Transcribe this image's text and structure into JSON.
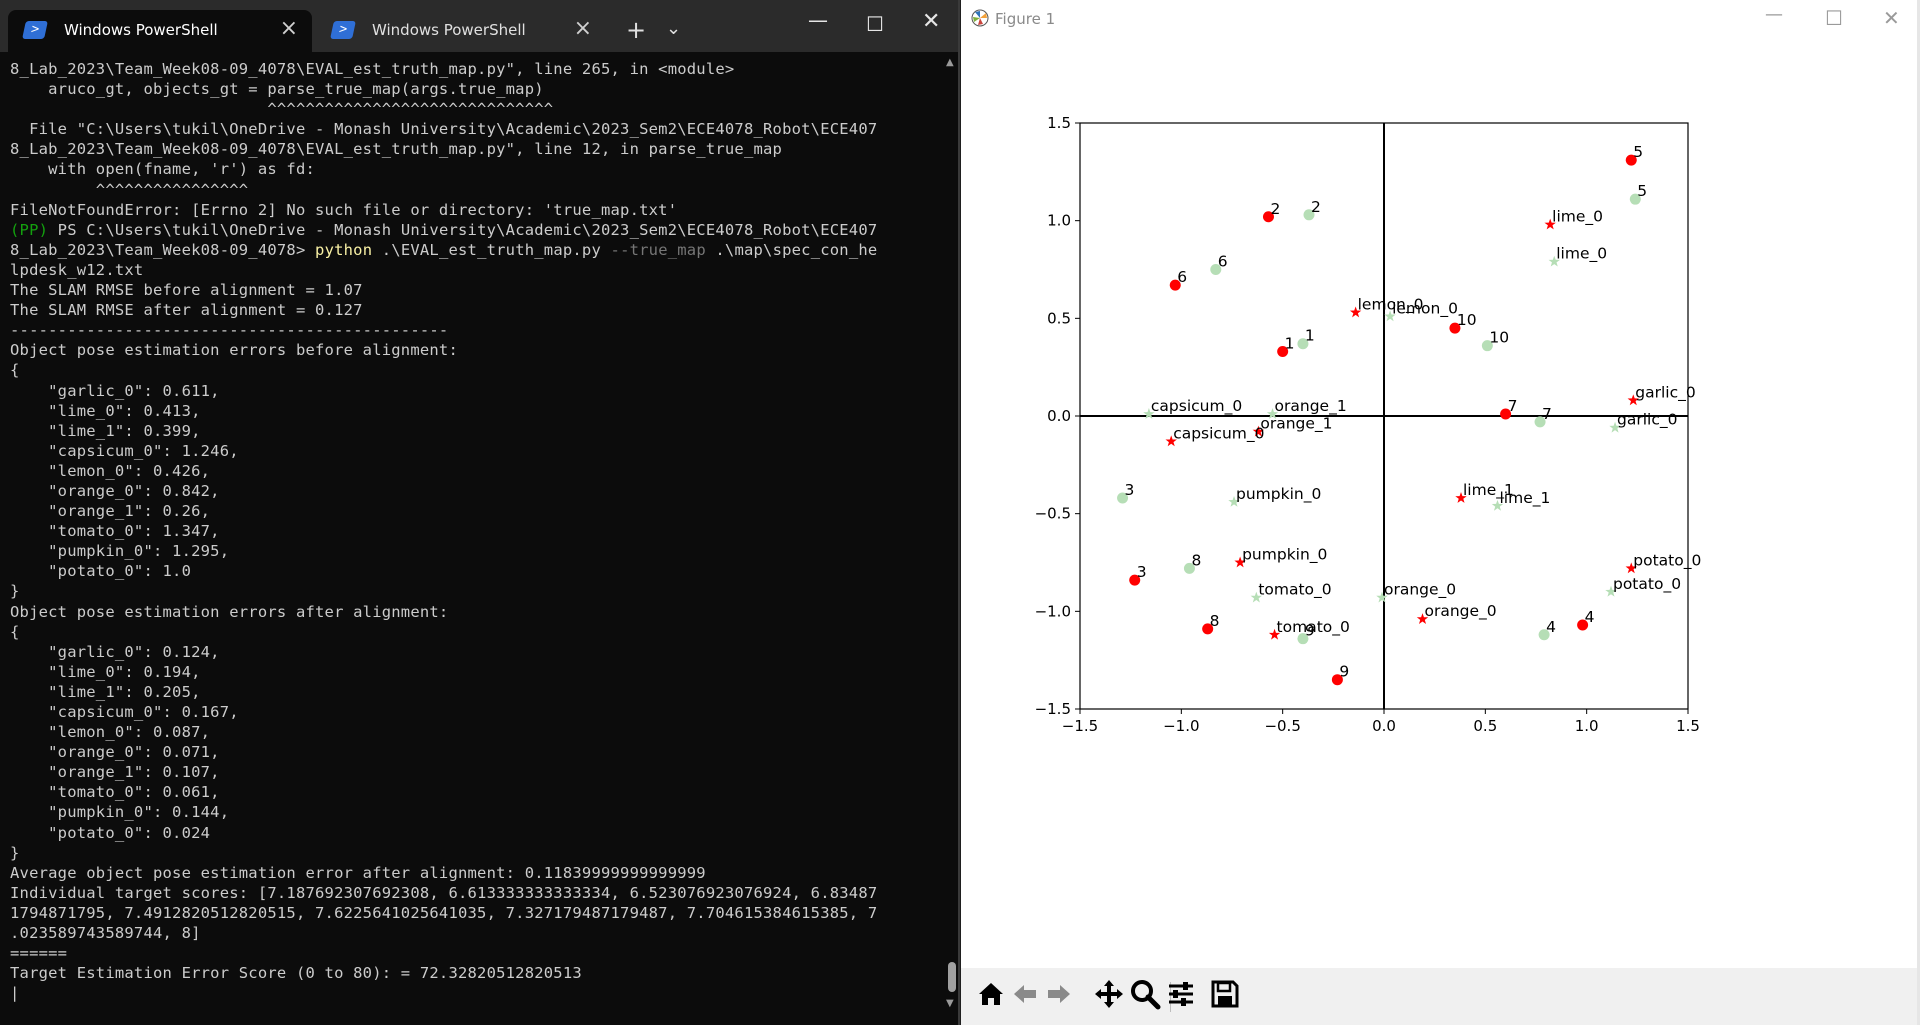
{
  "terminal": {
    "tabs": [
      {
        "label": "Windows PowerShell",
        "icon": "powershell-icon",
        "active": true
      },
      {
        "label": "Windows PowerShell",
        "icon": "powershell-icon",
        "active": false
      }
    ],
    "new_tab_glyph": "+",
    "dropdown_glyph": "⌄",
    "lines": [
      "8_Lab_2023\\Team_Week08-09_4078\\EVAL_est_truth_map.py\", line 265, in <module>",
      "    aruco_gt, objects_gt = parse_true_map(args.true_map)",
      "                           ^^^^^^^^^^^^^^^^^^^^^^^^^^^^^^",
      "  File \"C:\\Users\\tukil\\OneDrive - Monash University\\Academic\\2023_Sem2\\ECE4078_Robot\\ECE407",
      "8_Lab_2023\\Team_Week08-09_4078\\EVAL_est_truth_map.py\", line 12, in parse_true_map",
      "    with open(fname, 'r') as fd:",
      "         ^^^^^^^^^^^^^^^^",
      "FileNotFoundError: [Errno 2] No such file or directory: 'true_map.txt'",
      "__PROMPT__",
      "8_Lab_2023\\Team_Week08-09_4078> __CMD__",
      "lpdesk_w12.txt",
      "The SLAM RMSE before alignment = 1.07",
      "The SLAM RMSE after alignment = 0.127",
      "----------------------------------------------",
      "Object pose estimation errors before alignment:",
      "{",
      "    \"garlic_0\": 0.611,",
      "    \"lime_0\": 0.413,",
      "    \"lime_1\": 0.399,",
      "    \"capsicum_0\": 1.246,",
      "    \"lemon_0\": 0.426,",
      "    \"orange_0\": 0.842,",
      "    \"orange_1\": 0.26,",
      "    \"tomato_0\": 1.347,",
      "    \"pumpkin_0\": 1.295,",
      "    \"potato_0\": 1.0",
      "}",
      "Object pose estimation errors after alignment:",
      "{",
      "    \"garlic_0\": 0.124,",
      "    \"lime_0\": 0.194,",
      "    \"lime_1\": 0.205,",
      "    \"capsicum_0\": 0.167,",
      "    \"lemon_0\": 0.087,",
      "    \"orange_0\": 0.071,",
      "    \"orange_1\": 0.107,",
      "    \"tomato_0\": 0.061,",
      "    \"pumpkin_0\": 0.144,",
      "    \"potato_0\": 0.024",
      "}",
      "Average object pose estimation error after alignment: 0.11839999999999999",
      "Individual target scores: [7.187692307692308, 6.613333333333334, 6.523076923076924, 6.83487",
      "1794871795, 7.4912820512820515, 7.6225641025641035, 7.327179487179487, 7.704615384615385, 7",
      ".023589743589744, 8]",
      "======",
      "Target Estimation Error Score (0 to 80): = 72.32820512820513",
      "|"
    ],
    "prompt": {
      "env": "(PP)",
      "path": " PS C:\\Users\\tukil\\OneDrive - Monash University\\Academic\\2023_Sem2\\ECE4078_Robot\\ECE407"
    },
    "command": {
      "exe": "python",
      "script": " .\\EVAL_est_truth_map.py ",
      "flag": "--true_map",
      "arg": " .\\map\\spec_con_he"
    }
  },
  "figure": {
    "title": "Figure 1",
    "toolbar": [
      "home-icon",
      "back-icon",
      "forward-icon",
      "pan-icon",
      "zoom-icon",
      "configure-subplots-icon",
      "save-icon"
    ]
  },
  "chart_data": {
    "type": "scatter",
    "title": "",
    "xlabel": "",
    "ylabel": "",
    "xlim": [
      -1.5,
      1.5
    ],
    "ylim": [
      -1.5,
      1.5
    ],
    "xticks": [
      -1.5,
      -1.0,
      -0.5,
      0.0,
      0.5,
      1.0,
      1.5
    ],
    "yticks": [
      -1.5,
      -1.0,
      -0.5,
      0.0,
      0.5,
      1.0,
      1.5
    ],
    "xtick_labels": [
      "−1.5",
      "−1.0",
      "−0.5",
      "0.0",
      "0.5",
      "1.0",
      "1.5"
    ],
    "ytick_labels": [
      "−1.5",
      "−1.0",
      "−0.5",
      "0.0",
      "0.5",
      "1.0",
      "1.5"
    ],
    "grid": false,
    "axes_through_origin": true,
    "colors": {
      "estimate": "#ff0000",
      "truth": "#b6deb6",
      "axis": "#000000"
    },
    "series": [
      {
        "marker": "circle",
        "color": "#ff0000",
        "points": [
          {
            "label": "5",
            "x": 1.22,
            "y": 1.31
          },
          {
            "label": "2",
            "x": -0.57,
            "y": 1.02
          },
          {
            "label": "6",
            "x": -1.03,
            "y": 0.67
          },
          {
            "label": "1",
            "x": -0.5,
            "y": 0.33
          },
          {
            "label": "10",
            "x": 0.35,
            "y": 0.45
          },
          {
            "label": "7",
            "x": 0.6,
            "y": 0.01
          },
          {
            "label": "3",
            "x": -1.23,
            "y": -0.84
          },
          {
            "label": "8",
            "x": -0.87,
            "y": -1.09
          },
          {
            "label": "9",
            "x": -0.23,
            "y": -1.35
          },
          {
            "label": "4",
            "x": 0.98,
            "y": -1.07
          }
        ]
      },
      {
        "marker": "circle",
        "color": "#b6deb6",
        "points": [
          {
            "label": "5",
            "x": 1.24,
            "y": 1.11
          },
          {
            "label": "2",
            "x": -0.37,
            "y": 1.03
          },
          {
            "label": "6",
            "x": -0.83,
            "y": 0.75
          },
          {
            "label": "1",
            "x": -0.4,
            "y": 0.37
          },
          {
            "label": "10",
            "x": 0.51,
            "y": 0.36
          },
          {
            "label": "7",
            "x": 0.77,
            "y": -0.03
          },
          {
            "label": "3",
            "x": -1.29,
            "y": -0.42
          },
          {
            "label": "8",
            "x": -0.96,
            "y": -0.78
          },
          {
            "label": "9",
            "x": -0.4,
            "y": -1.14
          },
          {
            "label": "4",
            "x": 0.79,
            "y": -1.12
          }
        ]
      },
      {
        "marker": "star",
        "color": "#ff0000",
        "points": [
          {
            "label": "lime_0",
            "x": 0.82,
            "y": 0.98
          },
          {
            "label": "lemon_0",
            "x": -0.14,
            "y": 0.53
          },
          {
            "label": "garlic_0",
            "x": 1.23,
            "y": 0.08
          },
          {
            "label": "orange_1",
            "x": -0.62,
            "y": -0.08
          },
          {
            "label": "capsicum_0",
            "x": -1.05,
            "y": -0.13
          },
          {
            "label": "lime_1",
            "x": 0.38,
            "y": -0.42
          },
          {
            "label": "pumpkin_0",
            "x": -0.71,
            "y": -0.75
          },
          {
            "label": "potato_0",
            "x": 1.22,
            "y": -0.78
          },
          {
            "label": "orange_0",
            "x": 0.19,
            "y": -1.04
          },
          {
            "label": "tomato_0",
            "x": -0.54,
            "y": -1.12
          }
        ]
      },
      {
        "marker": "star",
        "color": "#b6deb6",
        "points": [
          {
            "label": "lime_0",
            "x": 0.84,
            "y": 0.79
          },
          {
            "label": "lemon_0",
            "x": 0.03,
            "y": 0.51
          },
          {
            "label": "garlic_0",
            "x": 1.14,
            "y": -0.06
          },
          {
            "label": "orange_1",
            "x": -0.55,
            "y": 0.01
          },
          {
            "label": "capsicum_0",
            "x": -1.16,
            "y": 0.01
          },
          {
            "label": "lime_1",
            "x": 0.56,
            "y": -0.46
          },
          {
            "label": "pumpkin_0",
            "x": -0.74,
            "y": -0.44
          },
          {
            "label": "potato_0",
            "x": 1.12,
            "y": -0.9
          },
          {
            "label": "orange_0",
            "x": -0.01,
            "y": -0.93
          },
          {
            "label": "tomato_0",
            "x": -0.63,
            "y": -0.93
          }
        ]
      }
    ]
  }
}
